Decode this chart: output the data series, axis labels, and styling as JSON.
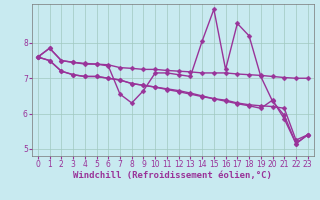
{
  "background_color": "#c8eaf0",
  "grid_color": "#a0c8c0",
  "line_color": "#993399",
  "marker": "D",
  "markersize": 2.5,
  "linewidth": 1.0,
  "xlabel": "Windchill (Refroidissement éolien,°C)",
  "xlabel_fontsize": 6.5,
  "tick_fontsize": 5.5,
  "xlim": [
    -0.5,
    23.5
  ],
  "ylim": [
    4.8,
    9.1
  ],
  "yticks": [
    5,
    6,
    7,
    8
  ],
  "xticks": [
    0,
    1,
    2,
    3,
    4,
    5,
    6,
    7,
    8,
    9,
    10,
    11,
    12,
    13,
    14,
    15,
    16,
    17,
    18,
    19,
    20,
    21,
    22,
    23
  ],
  "lines": [
    [
      7.6,
      7.85,
      7.5,
      7.45,
      7.4,
      7.4,
      7.35,
      6.55,
      6.3,
      6.65,
      7.15,
      7.15,
      7.1,
      7.05,
      8.05,
      8.95,
      7.25,
      8.55,
      8.2,
      7.05,
      6.35,
      5.95,
      5.15,
      5.4
    ],
    [
      7.6,
      7.85,
      7.5,
      7.45,
      7.42,
      7.4,
      7.38,
      7.3,
      7.28,
      7.25,
      7.25,
      7.22,
      7.2,
      7.18,
      7.15,
      7.15,
      7.15,
      7.12,
      7.1,
      7.08,
      7.05,
      7.02,
      7.0,
      7.0
    ],
    [
      7.6,
      7.5,
      7.2,
      7.1,
      7.05,
      7.05,
      7.0,
      6.95,
      6.85,
      6.8,
      6.75,
      6.7,
      6.65,
      6.58,
      6.5,
      6.42,
      6.38,
      6.3,
      6.25,
      6.22,
      6.2,
      6.15,
      5.25,
      5.4
    ],
    [
      7.6,
      7.5,
      7.2,
      7.1,
      7.05,
      7.05,
      7.0,
      6.95,
      6.85,
      6.8,
      6.75,
      6.68,
      6.62,
      6.55,
      6.48,
      6.42,
      6.35,
      6.28,
      6.22,
      6.15,
      6.38,
      5.85,
      5.15,
      5.4
    ]
  ]
}
